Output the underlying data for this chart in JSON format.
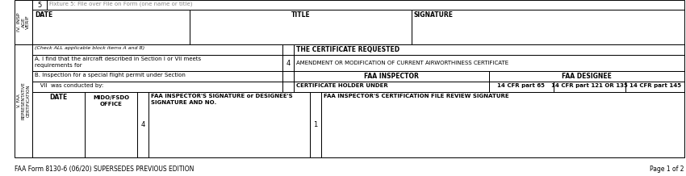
{
  "bg_color": "#ffffff",
  "border_color": "#000000",
  "text_color": "#000000",
  "gray_color": "#888888",
  "footer_left": "FAA Form 8130-6 (06/20) SUPERSEDES PREVIOUS EDITION",
  "footer_right": "Page 1 of 2",
  "row_top_number": "5",
  "row_top_placeholder": "Fixture 5: File over File on Form (one name or title)",
  "date_label": "DATE",
  "title_label": "TITLE",
  "signature_label": "SIGNATURE",
  "check_all_label": "(Check ALL applicable block items A and B)",
  "cert_requested_label": "THE CERTIFICATE REQUESTED",
  "item_A_line1": "A. I find that the aircraft described in Section I or VII meets",
  "item_A_line2": "requirements for",
  "box4_label": "4",
  "amendment_text": "AMENDMENT OR MODIFICATION OF CURRENT AIRWORTHINESS CERTIFICATE",
  "item_B_line1": "B. Inspection for a special flight permit under Section",
  "item_B_line2": "   VII  was conducted by:",
  "faa_inspector_label": "FAA INSPECTOR",
  "faa_designee_label": "FAA DESIGNEE",
  "cert_holder_label": "CERTIFICATE HOLDER UNDER",
  "cfr65_label": "14 CFR part 65",
  "cfr121_label": "14 CFR part 121 OR 135",
  "cfr145_label": "14 CFR part 145",
  "date_col_label": "DATE",
  "mido_line1": "MIDO/FSDO",
  "mido_line2": "OFFICE",
  "box4b_label": "4",
  "sig_line1": "FAA INSPECTOR'S SIGNATURE or DESIGNEE'S",
  "sig_line2": "SIGNATURE AND NO.",
  "box1_label": "1",
  "cert_file_label": "FAA INSPECTOR'S CERTIFICATION FILE REVIEW SIGNATURE",
  "iv_label": "IV. INSP\nAGE\nVERIF",
  "v_label": "V. FAA\nREPRESENTATIVE\nCERTIFICATION"
}
